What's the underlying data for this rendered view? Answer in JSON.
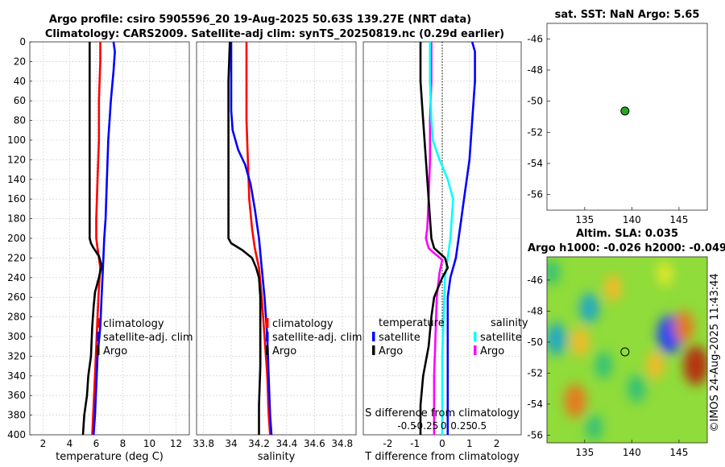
{
  "figure": {
    "title_line1": "Argo profile: csiro 5905596_20 19-Aug-2025 50.63S 139.27E (NRT data)",
    "title_line2": "Climatology: CARS2009. Satellite-adj clim: synTS_20250819.nc (0.29d earlier)",
    "watermark": "©IMOS 24-Aug-2025 11:43:44"
  },
  "colors": {
    "climatology": "#ff0000",
    "satellite": "#0000ff",
    "argo": "#000000",
    "sal_satellite": "#00ffff",
    "sal_diff": "#ff00ff",
    "marker": "#22aa22"
  },
  "chart_data": [
    {
      "id": "temp",
      "type": "line",
      "xlabel": "temperature (deg C)",
      "ylabel": "",
      "xlim": [
        1,
        13
      ],
      "ylim": [
        0,
        400
      ],
      "y_reversed": true,
      "xticks": [
        2,
        4,
        6,
        8,
        10,
        12
      ],
      "yticks": [
        0,
        20,
        40,
        60,
        80,
        100,
        120,
        140,
        160,
        180,
        200,
        220,
        240,
        260,
        280,
        300,
        320,
        340,
        360,
        380,
        400
      ],
      "legend": [
        "climatology",
        "satellite-adj. clim",
        "Argo"
      ],
      "series": [
        {
          "name": "climatology",
          "color": "#ff0000",
          "points": [
            [
              6.3,
              0
            ],
            [
              6.3,
              20
            ],
            [
              6.2,
              60
            ],
            [
              6.2,
              100
            ],
            [
              6.1,
              140
            ],
            [
              6.0,
              180
            ],
            [
              6.0,
              200
            ],
            [
              6.1,
              210
            ],
            [
              6.2,
              220
            ],
            [
              6.3,
              230
            ],
            [
              6.2,
              250
            ],
            [
              6.1,
              280
            ],
            [
              6.0,
              310
            ],
            [
              5.9,
              340
            ],
            [
              5.8,
              370
            ],
            [
              5.7,
              400
            ]
          ]
        },
        {
          "name": "satellite-adj. clim",
          "color": "#0000ff",
          "points": [
            [
              7.3,
              0
            ],
            [
              7.4,
              10
            ],
            [
              7.3,
              30
            ],
            [
              7.1,
              60
            ],
            [
              6.9,
              100
            ],
            [
              6.8,
              140
            ],
            [
              6.7,
              180
            ],
            [
              6.6,
              200
            ],
            [
              6.5,
              230
            ],
            [
              6.4,
              260
            ],
            [
              6.3,
              290
            ],
            [
              6.1,
              320
            ],
            [
              6.0,
              350
            ],
            [
              5.9,
              380
            ],
            [
              5.8,
              400
            ]
          ]
        },
        {
          "name": "Argo",
          "color": "#000000",
          "points": [
            [
              5.5,
              0
            ],
            [
              5.5,
              30
            ],
            [
              5.5,
              80
            ],
            [
              5.5,
              120
            ],
            [
              5.5,
              160
            ],
            [
              5.5,
              200
            ],
            [
              5.6,
              205
            ],
            [
              5.8,
              210
            ],
            [
              6.2,
              218
            ],
            [
              6.4,
              228
            ],
            [
              6.2,
              240
            ],
            [
              5.9,
              255
            ],
            [
              5.8,
              270
            ],
            [
              5.7,
              290
            ],
            [
              5.6,
              320
            ],
            [
              5.4,
              340
            ],
            [
              5.3,
              360
            ],
            [
              5.1,
              380
            ],
            [
              5.0,
              400
            ]
          ]
        }
      ]
    },
    {
      "id": "sal",
      "type": "line",
      "xlabel": "salinity",
      "ylabel": "",
      "xlim": [
        33.75,
        34.9
      ],
      "ylim": [
        0,
        400
      ],
      "y_reversed": true,
      "xticks": [
        33.8,
        34,
        34.2,
        34.4,
        34.6,
        34.8
      ],
      "legend": [
        "climatology",
        "satellite-adj. clim",
        "Argo"
      ],
      "series": [
        {
          "name": "climatology",
          "color": "#ff0000",
          "points": [
            [
              34.11,
              0
            ],
            [
              34.11,
              40
            ],
            [
              34.11,
              80
            ],
            [
              34.12,
              120
            ],
            [
              34.13,
              160
            ],
            [
              34.15,
              190
            ],
            [
              34.17,
              210
            ],
            [
              34.2,
              230
            ],
            [
              34.22,
              260
            ],
            [
              34.24,
              300
            ],
            [
              34.26,
              340
            ],
            [
              34.27,
              380
            ],
            [
              34.28,
              400
            ]
          ]
        },
        {
          "name": "satellite-adj. clim",
          "color": "#0000ff",
          "points": [
            [
              34.0,
              0
            ],
            [
              34.0,
              30
            ],
            [
              34.0,
              70
            ],
            [
              34.01,
              90
            ],
            [
              34.05,
              110
            ],
            [
              34.1,
              125
            ],
            [
              34.14,
              145
            ],
            [
              34.17,
              170
            ],
            [
              34.2,
              200
            ],
            [
              34.22,
              230
            ],
            [
              34.24,
              260
            ],
            [
              34.26,
              300
            ],
            [
              34.27,
              340
            ],
            [
              34.28,
              380
            ],
            [
              34.29,
              400
            ]
          ]
        },
        {
          "name": "Argo",
          "color": "#000000",
          "points": [
            [
              33.99,
              0
            ],
            [
              33.98,
              40
            ],
            [
              33.98,
              80
            ],
            [
              33.98,
              120
            ],
            [
              33.98,
              160
            ],
            [
              33.98,
              200
            ],
            [
              34.0,
              205
            ],
            [
              34.08,
              212
            ],
            [
              34.15,
              220
            ],
            [
              34.18,
              230
            ],
            [
              34.2,
              240
            ],
            [
              34.21,
              260
            ],
            [
              34.21,
              290
            ],
            [
              34.21,
              330
            ],
            [
              34.2,
              370
            ],
            [
              34.2,
              400
            ]
          ]
        }
      ]
    },
    {
      "id": "diff",
      "type": "line",
      "xlabel": "T difference from climatology",
      "secondary_xlabel": "S difference from climatology",
      "xlim": [
        -2.9,
        2.9
      ],
      "ylim": [
        0,
        400
      ],
      "y_reversed": true,
      "xticks": [
        -2,
        -1,
        0,
        1,
        2
      ],
      "secondary_xticks": [
        "-0.5",
        "-0.25",
        "0",
        "0.25",
        "0.5"
      ],
      "legend_temperature_title": "temperature",
      "legend_salinity_title": "salinity",
      "legend": [
        "satellite",
        "Argo",
        "satellite",
        "Argo"
      ],
      "series": [
        {
          "name": "T satellite",
          "color": "#0000ff",
          "points": [
            [
              1.1,
              0
            ],
            [
              1.2,
              10
            ],
            [
              1.2,
              40
            ],
            [
              1.1,
              80
            ],
            [
              1.0,
              120
            ],
            [
              0.9,
              140
            ],
            [
              0.8,
              160
            ],
            [
              0.7,
              180
            ],
            [
              0.6,
              200
            ],
            [
              0.5,
              220
            ],
            [
              0.3,
              240
            ],
            [
              0.2,
              260
            ],
            [
              0.2,
              300
            ],
            [
              0.2,
              340
            ],
            [
              0.2,
              380
            ],
            [
              0.2,
              400
            ]
          ]
        },
        {
          "name": "T Argo",
          "color": "#000000",
          "points": [
            [
              -0.8,
              0
            ],
            [
              -0.8,
              40
            ],
            [
              -0.7,
              80
            ],
            [
              -0.6,
              120
            ],
            [
              -0.5,
              160
            ],
            [
              -0.4,
              200
            ],
            [
              -0.3,
              210
            ],
            [
              0.1,
              220
            ],
            [
              0.2,
              230
            ],
            [
              0.0,
              240
            ],
            [
              -0.3,
              260
            ],
            [
              -0.4,
              280
            ],
            [
              -0.5,
              310
            ],
            [
              -0.7,
              340
            ],
            [
              -0.8,
              370
            ],
            [
              -0.8,
              400
            ]
          ]
        },
        {
          "name": "S satellite",
          "color": "#00ffff",
          "points": [
            [
              -0.45,
              0
            ],
            [
              -0.45,
              40
            ],
            [
              -0.4,
              80
            ],
            [
              -0.35,
              100
            ],
            [
              -0.1,
              120
            ],
            [
              0.2,
              140
            ],
            [
              0.4,
              160
            ],
            [
              0.35,
              180
            ],
            [
              0.3,
              200
            ],
            [
              0.2,
              220
            ],
            [
              0.1,
              240
            ],
            [
              0.05,
              280
            ],
            [
              0.0,
              320
            ],
            [
              0.0,
              360
            ],
            [
              0.0,
              400
            ]
          ]
        },
        {
          "name": "S Argo",
          "color": "#ff00ff",
          "points": [
            [
              -0.4,
              0
            ],
            [
              -0.4,
              40
            ],
            [
              -0.45,
              80
            ],
            [
              -0.45,
              120
            ],
            [
              -0.5,
              160
            ],
            [
              -0.55,
              190
            ],
            [
              -0.6,
              200
            ],
            [
              -0.5,
              210
            ],
            [
              -0.3,
              215
            ],
            [
              0.0,
              222
            ],
            [
              -0.1,
              235
            ],
            [
              -0.2,
              260
            ],
            [
              -0.25,
              300
            ],
            [
              -0.3,
              340
            ],
            [
              -0.3,
              380
            ],
            [
              -0.3,
              400
            ]
          ]
        }
      ]
    },
    {
      "id": "sst_map",
      "type": "scatter",
      "title": "sat. SST: NaN Argo: 5.65",
      "xlim": [
        131,
        148
      ],
      "ylim": [
        -57,
        -45
      ],
      "xticks": [
        135,
        140,
        145
      ],
      "yticks": [
        -46,
        -48,
        -50,
        -52,
        -54,
        -56
      ],
      "marker": {
        "lon": 139.27,
        "lat": -50.63
      }
    },
    {
      "id": "sla_map",
      "type": "heatmap",
      "title_line1": "Altim. SLA: 0.035",
      "title_line2": "Argo h1000: -0.026 h2000: -0.049",
      "xlim": [
        131,
        148
      ],
      "ylim": [
        -56.5,
        -44.5
      ],
      "xticks": [
        135,
        140,
        145
      ],
      "yticks": [
        -46,
        -48,
        -50,
        -52,
        -54,
        -56
      ],
      "marker": {
        "lon": 139.27,
        "lat": -50.63
      },
      "features": [
        {
          "lon": 144.0,
          "lat": -49.5,
          "level": -0.9
        },
        {
          "lon": 132.0,
          "lat": -49.8,
          "level": -0.6
        },
        {
          "lon": 135.5,
          "lat": -47.8,
          "level": -0.5
        },
        {
          "lon": 140.5,
          "lat": -53.0,
          "level": -0.4
        },
        {
          "lon": 137.0,
          "lat": -51.5,
          "level": -0.35
        },
        {
          "lon": 146.8,
          "lat": -51.5,
          "level": 0.95
        },
        {
          "lon": 134.0,
          "lat": -53.8,
          "level": 0.7
        },
        {
          "lon": 145.5,
          "lat": -49.0,
          "level": 0.6
        },
        {
          "lon": 134.5,
          "lat": -50.0,
          "level": 0.45
        },
        {
          "lon": 142.5,
          "lat": -51.5,
          "level": 0.4
        },
        {
          "lon": 138.0,
          "lat": -46.5,
          "level": 0.35
        },
        {
          "lon": 136.0,
          "lat": -55.5,
          "level": -0.3
        },
        {
          "lon": 143.5,
          "lat": -45.6,
          "level": 0.25
        },
        {
          "lon": 131.5,
          "lat": -45.5,
          "level": -0.25
        }
      ]
    }
  ]
}
